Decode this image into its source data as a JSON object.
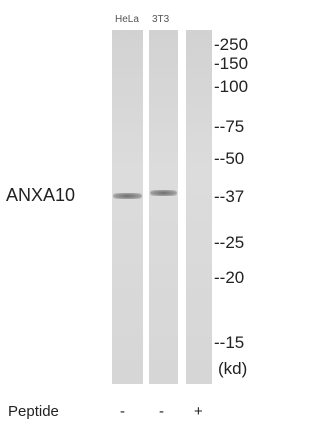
{
  "lanes": [
    "HeLa",
    "3T3"
  ],
  "protein": "ANXA10",
  "markers": [
    "-250",
    "-150",
    "-100",
    "--75",
    "--50",
    "--37",
    "--25",
    "--20",
    "--15",
    "(kd)"
  ],
  "peptide": {
    "label": "Peptide",
    "signs": [
      "-",
      "-",
      "+"
    ]
  }
}
